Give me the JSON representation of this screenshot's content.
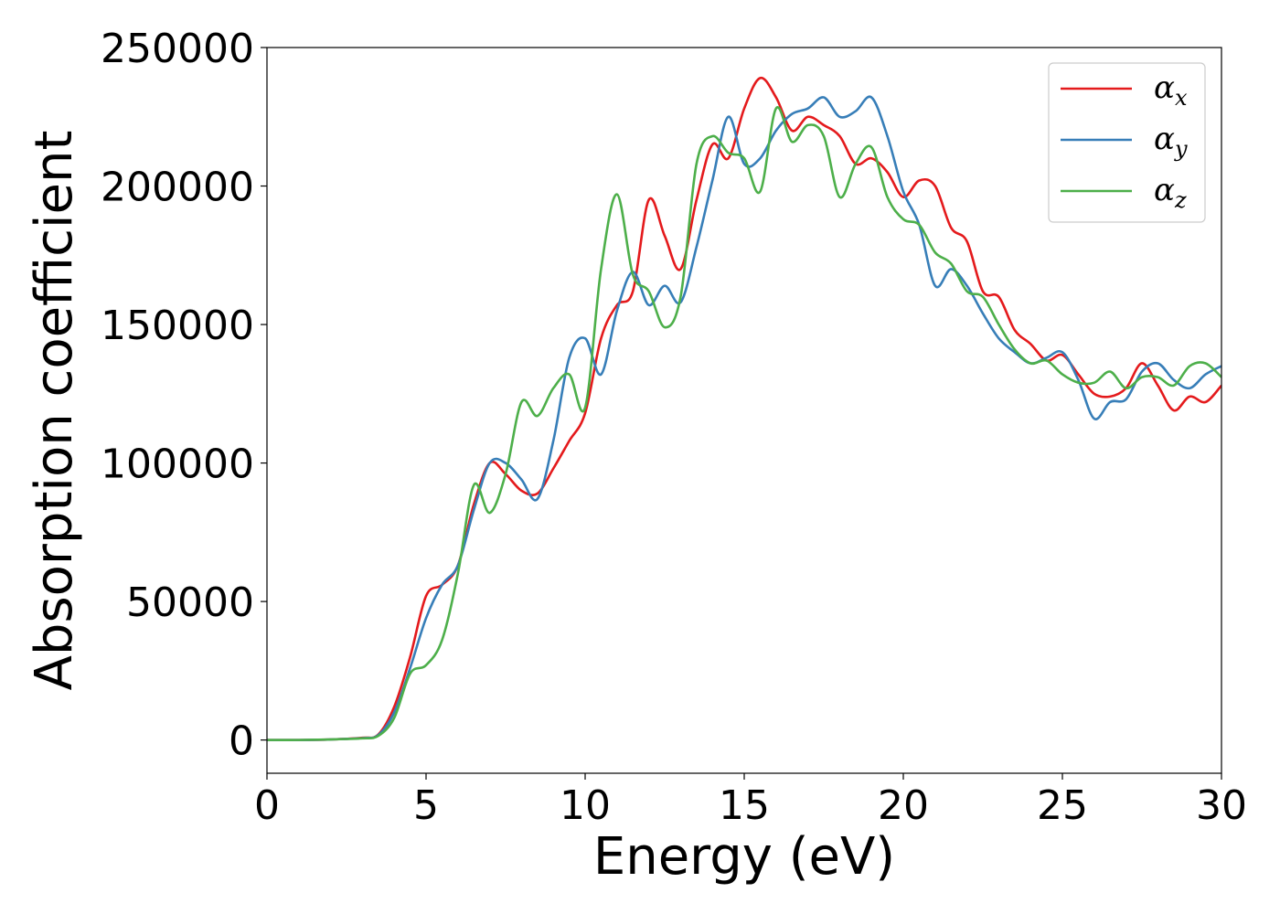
{
  "chart_data": {
    "type": "line",
    "title": "",
    "xlabel": "Energy (eV)",
    "ylabel": "Absorption coefficient",
    "xlim": [
      0,
      30
    ],
    "ylim": [
      -12000,
      250000
    ],
    "xticks": [
      0,
      5,
      10,
      15,
      20,
      25,
      30
    ],
    "xtick_labels": [
      "0",
      "5",
      "10",
      "15",
      "20",
      "25",
      "30"
    ],
    "yticks": [
      0,
      50000,
      100000,
      150000,
      200000,
      250000
    ],
    "ytick_labels": [
      "0",
      "50000",
      "100000",
      "150000",
      "200000",
      "250000"
    ],
    "grid": false,
    "legend_position": "top-right",
    "series": [
      {
        "name": "αx",
        "symbol": "α",
        "subscript": "x",
        "color": "#e41a1c",
        "x": [
          0,
          1,
          2,
          3,
          3.5,
          4,
          4.5,
          5,
          5.5,
          6,
          6.5,
          7,
          7.5,
          8,
          8.5,
          9,
          9.5,
          10,
          10.5,
          11,
          11.5,
          12,
          12.5,
          13,
          13.5,
          14,
          14.5,
          15,
          15.5,
          16,
          16.5,
          17,
          17.5,
          18,
          18.5,
          19,
          19.5,
          20,
          20.5,
          21,
          21.5,
          22,
          22.5,
          23,
          23.5,
          24,
          24.5,
          25,
          25.5,
          26,
          26.5,
          27,
          27.5,
          28,
          28.5,
          29,
          29.5,
          30
        ],
        "y": [
          0,
          0,
          200,
          800,
          2000,
          12000,
          30000,
          52000,
          56000,
          63000,
          85000,
          100000,
          96000,
          90000,
          89000,
          98000,
          108000,
          118000,
          145000,
          157000,
          162000,
          195000,
          182000,
          170000,
          195000,
          215000,
          210000,
          228000,
          239000,
          232000,
          220000,
          225000,
          222000,
          218000,
          208000,
          210000,
          205000,
          196000,
          202000,
          200000,
          185000,
          180000,
          162000,
          160000,
          148000,
          143000,
          137000,
          139000,
          132000,
          125000,
          124000,
          127000,
          136000,
          128000,
          119000,
          124000,
          122000,
          128000
        ]
      },
      {
        "name": "αy",
        "symbol": "α",
        "subscript": "y",
        "color": "#377eb8",
        "x": [
          0,
          1,
          2,
          3,
          3.5,
          4,
          4.5,
          5,
          5.5,
          6,
          6.5,
          7,
          7.5,
          8,
          8.5,
          9,
          9.5,
          10,
          10.5,
          11,
          11.5,
          12,
          12.5,
          13,
          13.5,
          14,
          14.5,
          15,
          15.5,
          16,
          16.5,
          17,
          17.5,
          18,
          18.5,
          19,
          19.5,
          20,
          20.5,
          21,
          21.5,
          22,
          22.5,
          23,
          23.5,
          24,
          24.5,
          25,
          25.5,
          26,
          26.5,
          27,
          27.5,
          28,
          28.5,
          29,
          29.5,
          30
        ],
        "y": [
          0,
          0,
          200,
          700,
          1800,
          10000,
          26000,
          44000,
          56000,
          63000,
          83000,
          100000,
          100000,
          94000,
          87000,
          108000,
          138000,
          145000,
          132000,
          155000,
          169000,
          157000,
          164000,
          158000,
          178000,
          202000,
          225000,
          208000,
          210000,
          220000,
          226000,
          228000,
          232000,
          225000,
          227000,
          232000,
          218000,
          198000,
          186000,
          164000,
          170000,
          164000,
          154000,
          145000,
          140000,
          136000,
          138000,
          140000,
          130000,
          116000,
          122000,
          123000,
          133000,
          136000,
          130000,
          127000,
          132000,
          135000
        ]
      },
      {
        "name": "αz",
        "symbol": "α",
        "subscript": "z",
        "color": "#4daf4a",
        "x": [
          0,
          1,
          2,
          3,
          3.5,
          4,
          4.5,
          5,
          5.5,
          6,
          6.5,
          7,
          7.5,
          8,
          8.5,
          9,
          9.5,
          10,
          10.5,
          11,
          11.5,
          12,
          12.5,
          13,
          13.5,
          14,
          14.5,
          15,
          15.5,
          16,
          16.5,
          17,
          17.5,
          18,
          18.5,
          19,
          19.5,
          20,
          20.5,
          21,
          21.5,
          22,
          22.5,
          23,
          23.5,
          24,
          24.5,
          25,
          25.5,
          26,
          26.5,
          27,
          27.5,
          28,
          28.5,
          29,
          29.5,
          30
        ],
        "y": [
          0,
          0,
          200,
          600,
          1500,
          8000,
          24000,
          27000,
          36000,
          60000,
          92000,
          82000,
          96000,
          122000,
          117000,
          127000,
          132000,
          120000,
          170000,
          197000,
          168000,
          162000,
          149000,
          160000,
          208000,
          218000,
          212000,
          210000,
          198000,
          228000,
          216000,
          222000,
          218000,
          196000,
          208000,
          214000,
          196000,
          188000,
          186000,
          176000,
          172000,
          162000,
          160000,
          150000,
          141000,
          136000,
          137000,
          132000,
          129000,
          129000,
          133000,
          127000,
          131000,
          131000,
          128000,
          135000,
          136000,
          131000
        ]
      }
    ]
  }
}
